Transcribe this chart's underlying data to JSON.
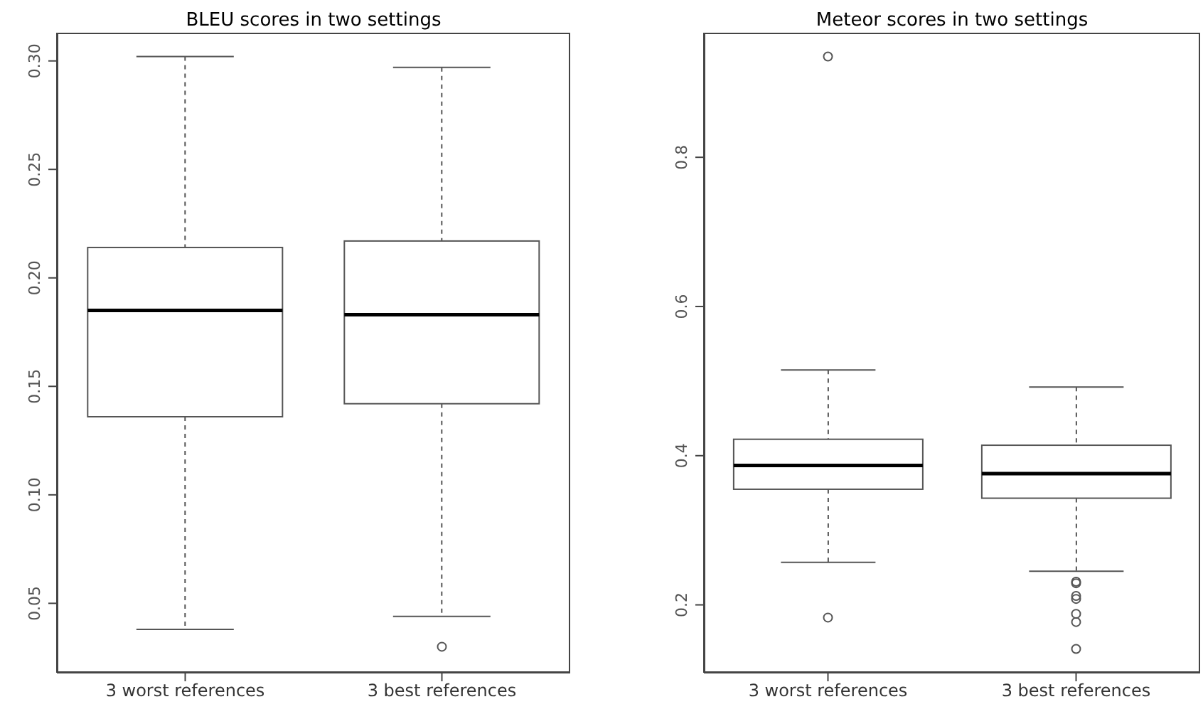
{
  "chart_data": [
    {
      "type": "box",
      "title": "BLEU scores in two settings",
      "categories": [
        "3 worst references",
        "3 best references"
      ],
      "color": "#555555",
      "boxes": [
        {
          "low": 0.038,
          "q1": 0.136,
          "median": 0.185,
          "q3": 0.214,
          "high": 0.302
        },
        {
          "low": 0.044,
          "q1": 0.142,
          "median": 0.183,
          "q3": 0.217,
          "high": 0.297,
          "outliers": [
            0.03
          ]
        }
      ],
      "ylim": [
        0.018,
        0.313
      ],
      "yticks": [
        0.05,
        {
          "value": 0.1,
          "label": "0.10"
        },
        0.15,
        {
          "value": 0.2,
          "label": "0.20"
        },
        0.25,
        {
          "value": 0.3,
          "label": "0.30"
        }
      ]
    },
    {
      "type": "box",
      "title": "Meteor scores in two settings",
      "categories": [
        "3 worst references",
        "3 best references"
      ],
      "color": "#555555",
      "boxes": [
        {
          "low": 0.257,
          "q1": 0.355,
          "median": 0.387,
          "q3": 0.422,
          "high": 0.515,
          "outliers": [
            0.935,
            0.183
          ]
        },
        {
          "low": 0.245,
          "q1": 0.343,
          "median": 0.376,
          "q3": 0.414,
          "high": 0.492,
          "outliers": [
            0.231,
            0.229,
            0.212,
            0.208,
            0.188,
            0.177,
            0.141
          ]
        }
      ],
      "ylim": [
        0.109,
        0.967
      ],
      "yticks": [
        0.2,
        0.4,
        0.6,
        0.8
      ]
    }
  ]
}
